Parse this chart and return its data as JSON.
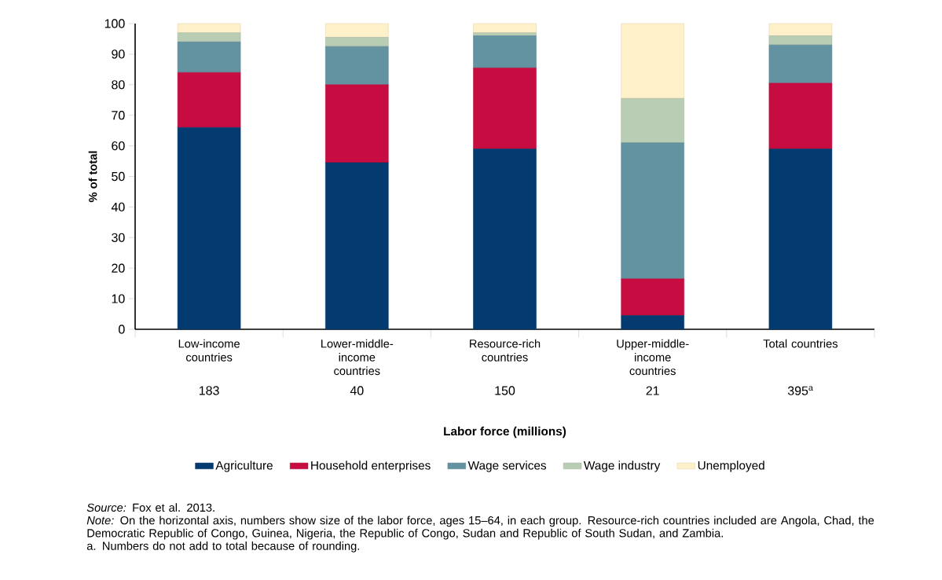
{
  "chart_data": {
    "type": "bar",
    "stacked": true,
    "ylabel": "% of total",
    "xlabel": "Labor force (millions)",
    "categories": [
      "Low-income countries",
      "Lower-middle-income countries",
      "Resource-rich countries",
      "Upper-middle-income countries",
      "Total countries"
    ],
    "series": [
      {
        "name": "Agriculture",
        "color": "#033b70",
        "values": [
          66,
          54.5,
          59,
          4.5,
          59
        ]
      },
      {
        "name": "Household enterprises",
        "color": "#c60c40",
        "values": [
          18,
          25.5,
          26.5,
          12,
          21.5
        ]
      },
      {
        "name": "Wage services",
        "color": "#6393a0",
        "values": [
          10,
          12.5,
          10.5,
          44.5,
          12.5
        ]
      },
      {
        "name": "Wage industry",
        "color": "#b9cdb4",
        "values": [
          3,
          3,
          1,
          14.5,
          3
        ]
      },
      {
        "name": "Unemployed",
        "color": "#fef0c8",
        "values": [
          3,
          4.5,
          3,
          24.5,
          4
        ]
      }
    ],
    "ylim": [
      0,
      100
    ],
    "yticks": [
      0,
      10,
      20,
      30,
      40,
      50,
      60,
      70,
      80,
      90,
      100
    ],
    "legend": "bottom",
    "annotations": [
      "183",
      "40",
      "150",
      "21",
      "395$^{a}$",
      "*Source:* Fox et al. 2013.",
      "*Note:* On the horizontal axis, numbers show size of the labor force, ages 15–64, in each group. Resource-rich countries included are Angola, Chad, the Democratic Republic of Congo, Guinea, Nigeria, the Republic of Congo, Sudan and Republic of South Sudan, and Zambia.",
      "a. Numbers do not add to total because of rounding."
    ]
  }
}
